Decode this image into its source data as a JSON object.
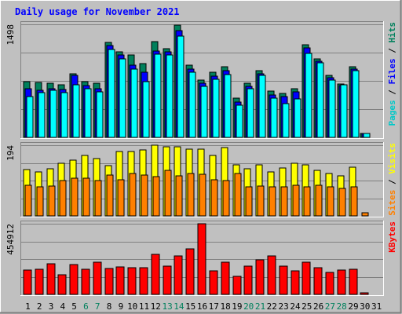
{
  "chart_data": {
    "type": "bar",
    "title": "Daily usage for November 2021",
    "categories": [
      "1",
      "2",
      "3",
      "4",
      "5",
      "6",
      "7",
      "8",
      "9",
      "10",
      "11",
      "12",
      "13",
      "14",
      "15",
      "16",
      "17",
      "18",
      "19",
      "20",
      "21",
      "22",
      "23",
      "24",
      "25",
      "26",
      "27",
      "28",
      "29",
      "30",
      "31"
    ],
    "weekend_days": [
      "6",
      "7",
      "13",
      "14",
      "20",
      "21",
      "27",
      "28"
    ],
    "panels": [
      {
        "id": "hits",
        "ymax": 1498,
        "ymax_label": "1498",
        "series": [
          {
            "name": "Hits",
            "color": "#00805c",
            "values": [
              740,
              730,
              720,
              700,
              840,
              740,
              720,
              1260,
              1130,
              1090,
              980,
              1270,
              1180,
              1490,
              960,
              760,
              860,
              940,
              520,
              720,
              880,
              610,
              580,
              650,
              1230,
              1040,
              820,
              710,
              940,
              50,
              0
            ]
          },
          {
            "name": "Files",
            "color": "#0000ff",
            "values": [
              650,
              620,
              640,
              630,
              820,
              690,
              650,
              1220,
              1090,
              960,
              860,
              1140,
              1130,
              1410,
              900,
              720,
              810,
              880,
              470,
              680,
              840,
              560,
              540,
              600,
              1190,
              1010,
              790,
              690,
              910,
              50,
              0
            ]
          },
          {
            "name": "Pages",
            "color": "#00ffff",
            "values": [
              540,
              590,
              620,
              590,
              700,
              640,
              600,
              1160,
              1040,
              910,
              740,
              1100,
              1090,
              1340,
              860,
              680,
              770,
              830,
              430,
              650,
              820,
              520,
              450,
              510,
              1110,
              990,
              760,
              700,
              880,
              50,
              0
            ]
          }
        ]
      },
      {
        "id": "visits",
        "ymax": 194,
        "ymax_label": "194",
        "series": [
          {
            "name": "Visits",
            "color": "#ffff00",
            "values": [
              127,
              120,
              130,
              144,
              154,
              165,
              158,
              138,
              176,
              176,
              180,
              194,
              190,
              190,
              184,
              184,
              166,
              188,
              140,
              130,
              140,
              121,
              132,
              145,
              141,
              124,
              117,
              110,
              134,
              0,
              0
            ]
          },
          {
            "name": "Sites",
            "color": "#ff8000",
            "values": [
              83,
              80,
              82,
              96,
              103,
              103,
              96,
              112,
              100,
              116,
              112,
              107,
              124,
              110,
              117,
              115,
              100,
              97,
              116,
              80,
              81,
              80,
              79,
              83,
              80,
              85,
              80,
              76,
              80,
              9,
              0
            ]
          }
        ]
      },
      {
        "id": "kbytes",
        "ymax": 454912,
        "ymax_label": "454912",
        "series": [
          {
            "name": "KBytes",
            "color": "#ff0000",
            "values": [
              159000,
              162000,
              198000,
              128000,
              192000,
              162000,
              206000,
              165000,
              179000,
              172000,
              173000,
              256000,
              180000,
              248000,
              294000,
              454912,
              152000,
              206000,
              115000,
              180000,
              224000,
              248000,
              181000,
              151000,
              206000,
              172000,
              143000,
              159000,
              162000,
              9000,
              0
            ]
          }
        ]
      }
    ],
    "legend": [
      {
        "panel": "hits",
        "items": [
          {
            "text": "Pages",
            "color": "#00c8c8"
          },
          {
            "text": " / ",
            "color": "#000000"
          },
          {
            "text": "Files",
            "color": "#0000ff"
          },
          {
            "text": " / ",
            "color": "#000000"
          },
          {
            "text": "Hits",
            "color": "#00805c"
          }
        ]
      },
      {
        "panel": "visits",
        "items": [
          {
            "text": "Sites",
            "color": "#ff8000"
          },
          {
            "text": " / ",
            "color": "#000000"
          },
          {
            "text": "Visits",
            "color": "#ffff00"
          }
        ]
      },
      {
        "panel": "kbytes",
        "items": [
          {
            "text": "KBytes",
            "color": "#ff0000"
          }
        ]
      }
    ],
    "colors": {
      "title": "#0000ff",
      "weekday_label": "#000000",
      "weekend_label": "#00805c",
      "background": "#c0c0c0",
      "plot_background": "#c0c0c0",
      "grid": "#808080"
    },
    "grid": true
  }
}
